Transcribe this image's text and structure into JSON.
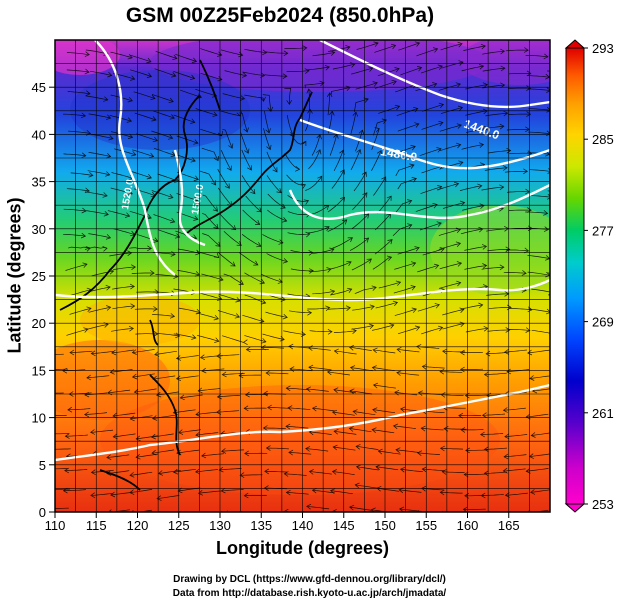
{
  "title": "GSM 00Z25Feb2024 (850.0hPa)",
  "xlabel": "Longitude (degrees)",
  "ylabel": "Latitude  (degrees)",
  "credits": [
    "Drawing by DCL (https://www.gfd-dennou.org/library/dcl/)",
    "Data from http://database.rish.kyoto-u.ac.jp/arch/jmadata/"
  ],
  "map": {
    "lon_range": [
      110,
      170
    ],
    "lat_range": [
      0,
      50
    ],
    "x_ticks": [
      "110",
      "115",
      "120",
      "125",
      "130",
      "135",
      "140",
      "145",
      "150",
      "155",
      "160",
      "165"
    ],
    "y_ticks": [
      "0",
      "5",
      "10",
      "15",
      "20",
      "25",
      "30",
      "35",
      "40",
      "45"
    ],
    "field": "temperature (K)",
    "overlay": [
      "geopotential height contours",
      "wind streamlines",
      "coastlines"
    ],
    "contour_labels": [
      {
        "text": "1440.0",
        "lon": 160,
        "lat": 46
      },
      {
        "text": "1480.0",
        "lon": 150,
        "lat": 40
      },
      {
        "text": "1520.0",
        "lon": 120,
        "lat": 35
      },
      {
        "text": "1500.0",
        "lon": 127,
        "lat": 35
      }
    ]
  },
  "colorbar": {
    "min": 253,
    "max": 293,
    "tick_labels": [
      "293",
      "285",
      "277",
      "269",
      "261",
      "253"
    ],
    "colors": [
      "#e00000",
      "#ff5a00",
      "#ff9e00",
      "#ffd400",
      "#cce800",
      "#66d600",
      "#00cc66",
      "#00cccc",
      "#0099ff",
      "#0044ff",
      "#0000cc",
      "#5500cc",
      "#cc00cc",
      "#ff00cc"
    ]
  }
}
